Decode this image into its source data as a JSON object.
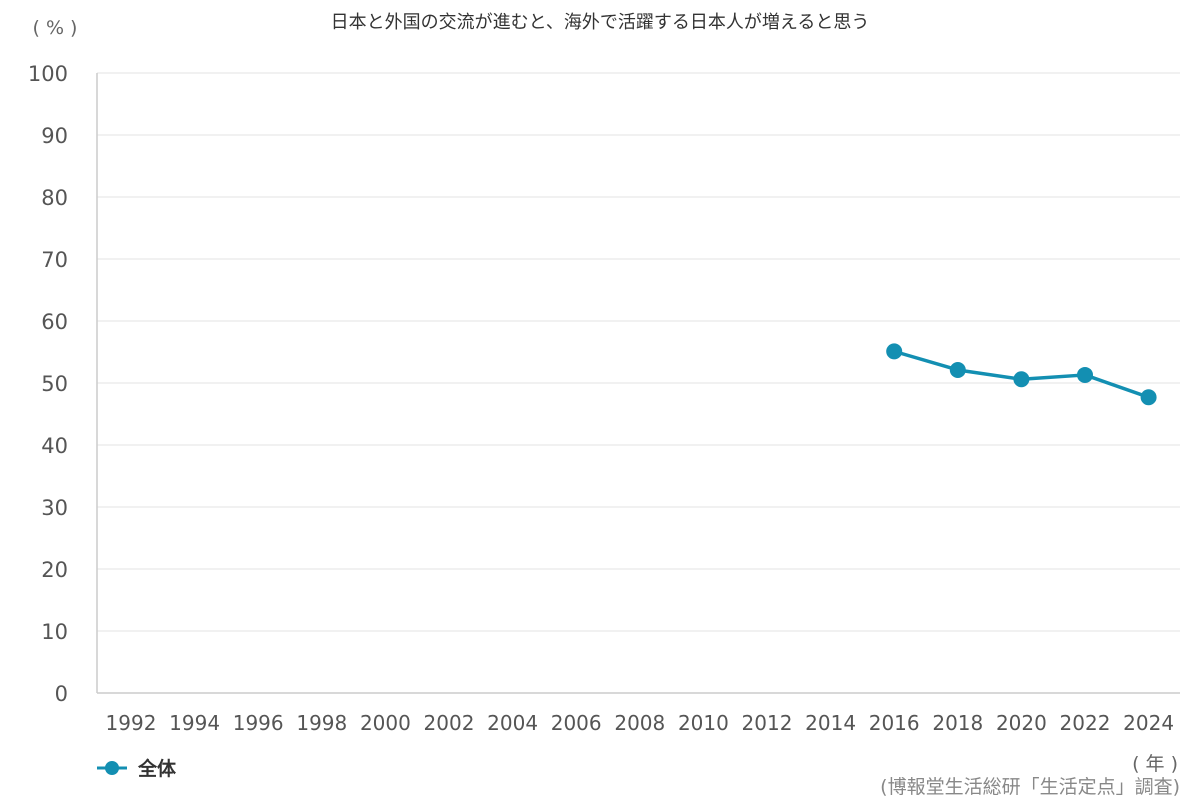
{
  "chart_data": {
    "type": "line",
    "title": "日本と外国の交流が進むと、海外で活躍する日本人が増えると思う",
    "ylabel_unit": "( % )",
    "xlabel_unit": "( 年 )",
    "source": "(博報堂生活総研「生活定点」調査)",
    "categories": [
      "1992",
      "1994",
      "1996",
      "1998",
      "2000",
      "2002",
      "2004",
      "2006",
      "2008",
      "2010",
      "2012",
      "2014",
      "2016",
      "2018",
      "2020",
      "2022",
      "2024"
    ],
    "ylim": [
      0,
      100
    ],
    "yticks": [
      0,
      10,
      20,
      30,
      40,
      50,
      60,
      70,
      80,
      90,
      100
    ],
    "grid": true,
    "legend_position": "bottom-left",
    "series": [
      {
        "name": "全体",
        "color": "#138fb2",
        "values": [
          null,
          null,
          null,
          null,
          null,
          null,
          null,
          null,
          null,
          null,
          null,
          null,
          55.1,
          52.1,
          50.6,
          51.3,
          47.7
        ]
      }
    ]
  }
}
